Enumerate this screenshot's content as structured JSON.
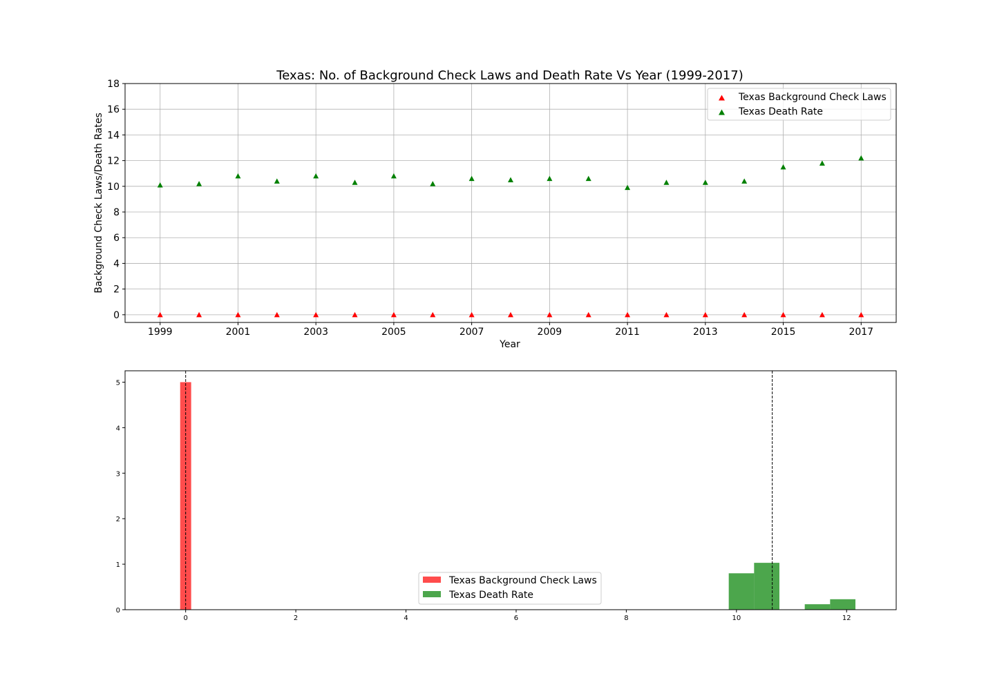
{
  "chart_data": [
    {
      "type": "scatter",
      "title": "Texas: No. of Background Check Laws and Death Rate Vs Year (1999-2017)",
      "xlabel": "Year",
      "ylabel": "Background Check Laws/Death Rates",
      "x": [
        1999,
        2000,
        2001,
        2002,
        2003,
        2004,
        2005,
        2006,
        2007,
        2008,
        2009,
        2010,
        2011,
        2012,
        2013,
        2014,
        2015,
        2016,
        2017
      ],
      "x_ticks": [
        "1999",
        "2001",
        "2003",
        "2005",
        "2007",
        "2009",
        "2011",
        "2013",
        "2015",
        "2017"
      ],
      "xlim": [
        1998.1,
        2017.9
      ],
      "ylim": [
        -0.6,
        18
      ],
      "y_ticks": [
        "0",
        "2",
        "4",
        "6",
        "8",
        "10",
        "12",
        "14",
        "16",
        "18"
      ],
      "grid": true,
      "legend_position": "top-right",
      "marker": "triangle",
      "series": [
        {
          "name": "Texas Background Check Laws",
          "color": "#ff0000",
          "values": [
            0,
            0,
            0,
            0,
            0,
            0,
            0,
            0,
            0,
            0,
            0,
            0,
            0,
            0,
            0,
            0,
            0,
            0,
            0
          ]
        },
        {
          "name": "Texas Death Rate",
          "color": "#008000",
          "values": [
            10.1,
            10.2,
            10.8,
            10.4,
            10.8,
            10.3,
            10.8,
            10.2,
            10.6,
            10.5,
            10.6,
            10.6,
            9.9,
            10.3,
            10.3,
            10.4,
            11.5,
            11.8,
            12.2
          ]
        }
      ]
    },
    {
      "type": "bar",
      "subtype": "histogram",
      "title": "",
      "xlabel": "",
      "ylabel": "",
      "xlim": [
        -1.1,
        12.9
      ],
      "ylim": [
        0,
        5.25
      ],
      "x_ticks": [
        "0",
        "2",
        "4",
        "6",
        "8",
        "10",
        "12"
      ],
      "y_ticks": [
        "0",
        "1",
        "2",
        "3",
        "4",
        "5"
      ],
      "grid": false,
      "legend_position": "lower-center",
      "series": [
        {
          "name": "Texas Background Check Laws",
          "color": "#ff0000",
          "opacity": 0.7,
          "bins": [
            {
              "start": -0.1,
              "end": 0.1,
              "value": 5.0
            }
          ],
          "mean_line": 0
        },
        {
          "name": "Texas Death Rate",
          "color": "#008000",
          "opacity": 0.7,
          "bins": [
            {
              "start": 9.86,
              "end": 10.32,
              "value": 0.8
            },
            {
              "start": 10.32,
              "end": 10.78,
              "value": 1.03
            },
            {
              "start": 10.78,
              "end": 11.24,
              "value": 0
            },
            {
              "start": 11.24,
              "end": 11.7,
              "value": 0.12
            },
            {
              "start": 11.7,
              "end": 12.16,
              "value": 0.23
            }
          ],
          "mean_line": 10.65
        }
      ]
    }
  ]
}
